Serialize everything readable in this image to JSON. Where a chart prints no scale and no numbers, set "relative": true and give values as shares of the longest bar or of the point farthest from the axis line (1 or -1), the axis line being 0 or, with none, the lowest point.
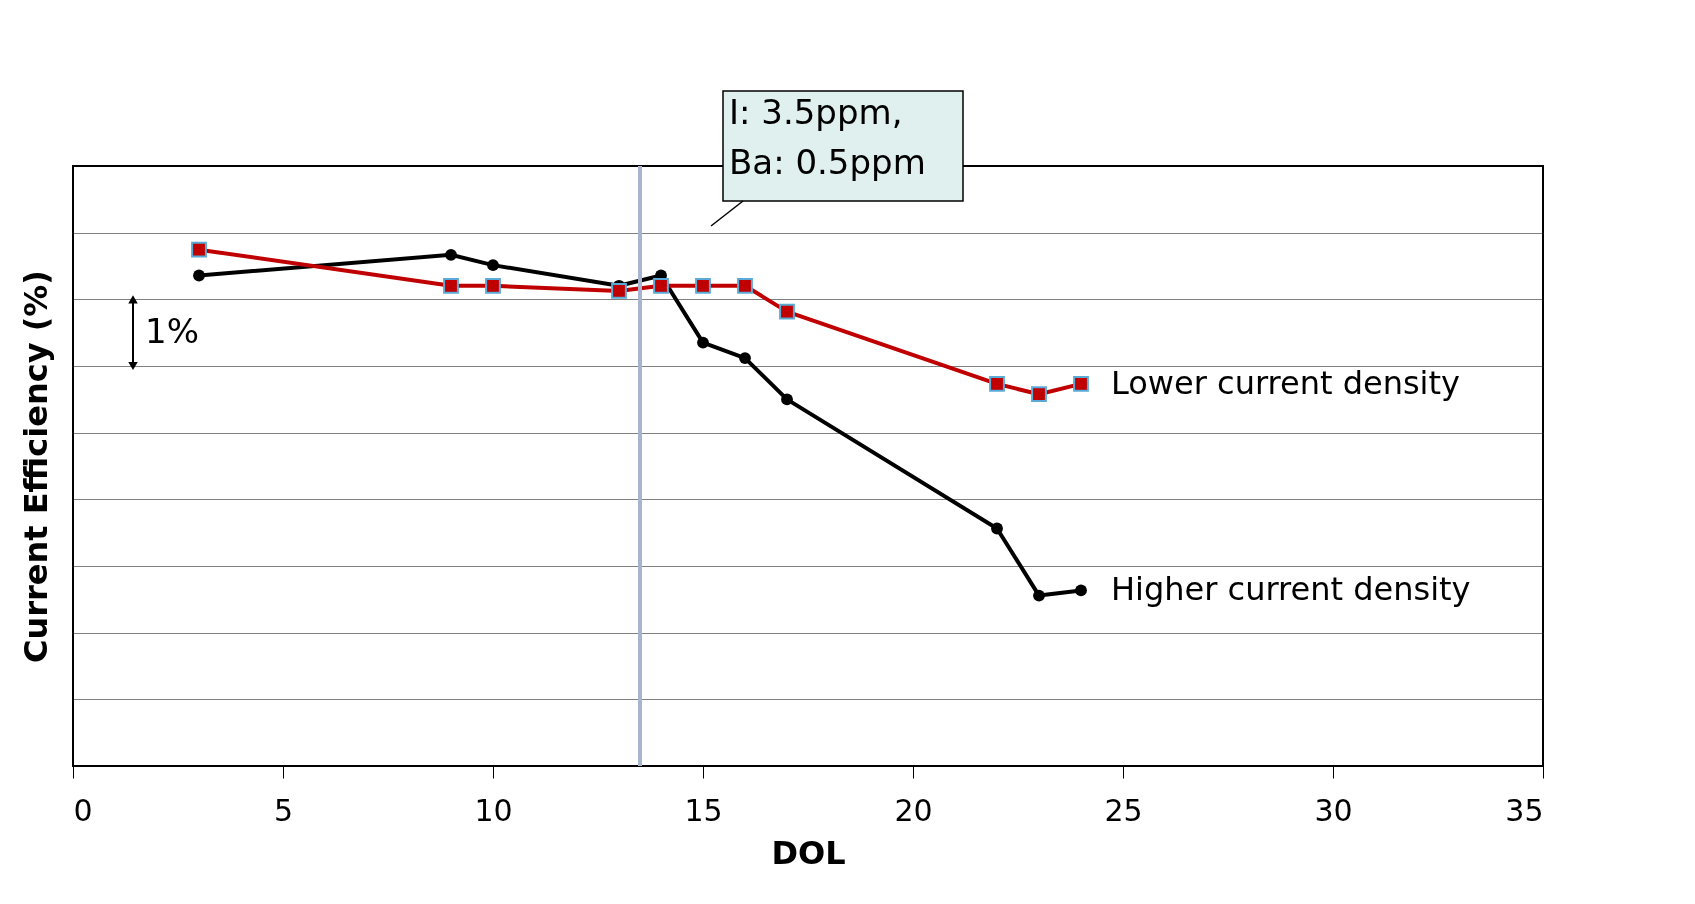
{
  "chart_data": {
    "type": "line",
    "relative": true,
    "xlabel": "DOL",
    "ylabel": "Current Efficiency (%)",
    "xlim": [
      0,
      35
    ],
    "xticks": [
      0,
      5,
      10,
      15,
      20,
      25,
      30,
      35
    ],
    "x": [
      3,
      9,
      10,
      13,
      14,
      15,
      16,
      17,
      22,
      23,
      24
    ],
    "series": [
      {
        "name": "Lower current density",
        "color": "#c00000",
        "marker": "square",
        "values": [
          1.0,
          0.93,
          0.93,
          0.92,
          0.93,
          0.93,
          0.93,
          0.88,
          0.74,
          0.72,
          0.74
        ]
      },
      {
        "name": "Higher current density",
        "color": "#000000",
        "marker": "circle",
        "values": [
          0.95,
          0.99,
          0.97,
          0.93,
          0.95,
          0.82,
          0.79,
          0.71,
          0.46,
          0.33,
          0.34
        ]
      }
    ],
    "ref_lines": [
      {
        "axis": "x",
        "value": 13.5,
        "color": "#a9b4d0"
      }
    ],
    "annotations": [
      "I: 3.5ppm,\nBa: 0.5ppm",
      "1%"
    ],
    "grid": "y",
    "legend": false,
    "line_style": "solid"
  }
}
